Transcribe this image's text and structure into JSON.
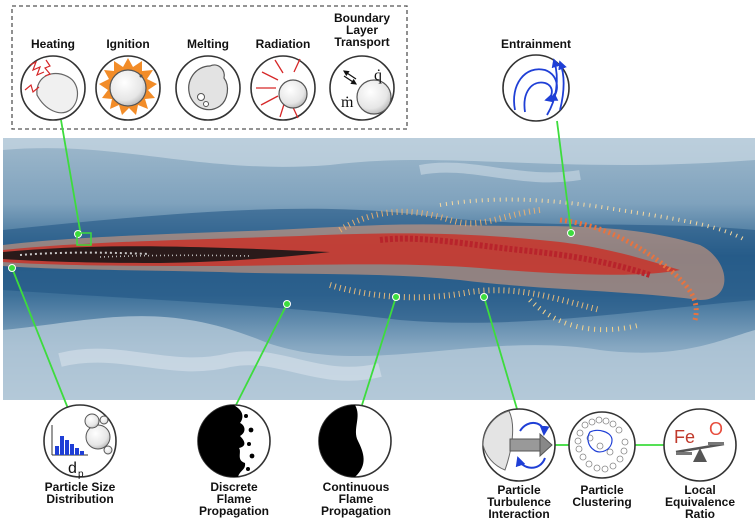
{
  "top_labels": {
    "heating": "Heating",
    "ignition": "Ignition",
    "melting": "Melting",
    "radiation": "Radiation",
    "boundary": "Boundary\nLayer\nTransport",
    "entrainment": "Entrainment"
  },
  "bottom_labels": {
    "psd": "Particle Size\nDistribution",
    "discrete": "Discrete\nFlame\nPropagation",
    "continuous": "Continuous\nFlame\nPropagation",
    "turbulence": "Particle\nTurbulence\nInteraction",
    "clustering": "Particle\nClustering",
    "equivalence": "Local\nEquivalence\nRatio"
  },
  "symbols": {
    "q_dot": "q̇",
    "m_dot": "ṁ",
    "d_p": "d",
    "d_p_sub": "p",
    "fe": "Fe",
    "o": "O"
  },
  "colors": {
    "connector": "#3ddc3d",
    "fe_color": "#c0392b",
    "o_color": "#e74c3c",
    "arrow_blue": "#1f3fd6"
  }
}
